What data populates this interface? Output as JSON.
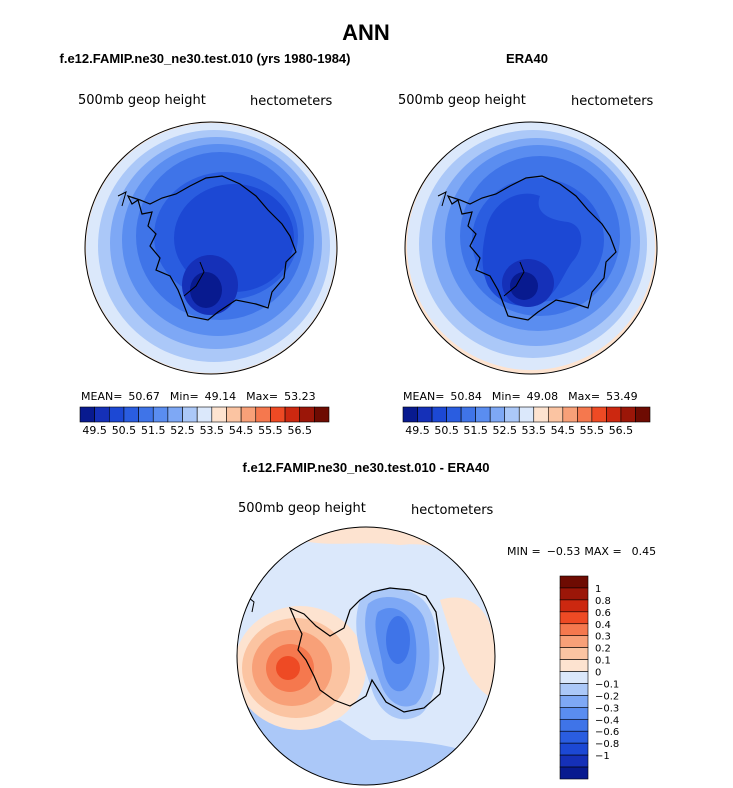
{
  "main_title": "ANN",
  "colors": {
    "ann_scale": [
      "#081a8f",
      "#1530b8",
      "#1c48d4",
      "#2a5de0",
      "#3f74e8",
      "#5a8df0",
      "#7ea8f5",
      "#abc8f8",
      "#dbe8fb",
      "#fde3d0",
      "#fbc4a2",
      "#f8a078",
      "#f5784e",
      "#ee4a24",
      "#cc2810",
      "#9b1608",
      "#6e0b02"
    ],
    "diff_scale": [
      "#081a8f",
      "#1530b8",
      "#1c48d4",
      "#2a5de0",
      "#3f74e8",
      "#5a8df0",
      "#7ea8f5",
      "#abc8f8",
      "#dbe8fb",
      "#fde3d0",
      "#fbc4a2",
      "#f8a078",
      "#f5784e",
      "#ee4a24",
      "#cc2810",
      "#9b1608",
      "#6e0b02"
    ]
  },
  "chart_data": [
    {
      "type": "heatmap",
      "title": "f.e12.FAMIP.ne30_ne30.test.010 (yrs 1980-1984)",
      "left_label": "500mb geop height",
      "right_label": "hectometers",
      "stats": {
        "mean_label": "MEAN=",
        "mean": "50.67",
        "min_label": "Min=",
        "min": "49.14",
        "max_label": "Max=",
        "max": "53.23"
      },
      "colorbar_labels": [
        "49.5",
        "50.5",
        "51.5",
        "52.5",
        "53.5",
        "54.5",
        "55.5",
        "56.5"
      ],
      "levels": [
        49.5,
        50.0,
        50.5,
        51.0,
        51.5,
        52.0,
        52.5,
        53.0,
        53.5,
        54.0,
        54.5,
        55.0,
        55.5,
        56.0,
        56.5
      ]
    },
    {
      "type": "heatmap",
      "title": "ERA40",
      "left_label": "500mb geop height",
      "right_label": "hectometers",
      "stats": {
        "mean_label": "MEAN=",
        "mean": "50.84",
        "min_label": "Min=",
        "min": "49.08",
        "max_label": "Max=",
        "max": "53.49"
      },
      "colorbar_labels": [
        "49.5",
        "50.5",
        "51.5",
        "52.5",
        "53.5",
        "54.5",
        "55.5",
        "56.5"
      ],
      "levels": [
        49.5,
        50.0,
        50.5,
        51.0,
        51.5,
        52.0,
        52.5,
        53.0,
        53.5,
        54.0,
        54.5,
        55.0,
        55.5,
        56.0,
        56.5
      ]
    },
    {
      "type": "heatmap",
      "title": "f.e12.FAMIP.ne30_ne30.test.010 - ERA40",
      "left_label": "500mb geop height",
      "right_label": "hectometers",
      "stats": {
        "min_label": "MIN =",
        "min": "−0.53",
        "max_label": "MAX =",
        "max": "0.45"
      },
      "colorbar_labels": [
        "1",
        "0.8",
        "0.6",
        "0.4",
        "0.3",
        "0.2",
        "0.1",
        "0",
        "−0.1",
        "−0.2",
        "−0.3",
        "−0.4",
        "−0.6",
        "−0.8",
        "−1"
      ]
    }
  ]
}
